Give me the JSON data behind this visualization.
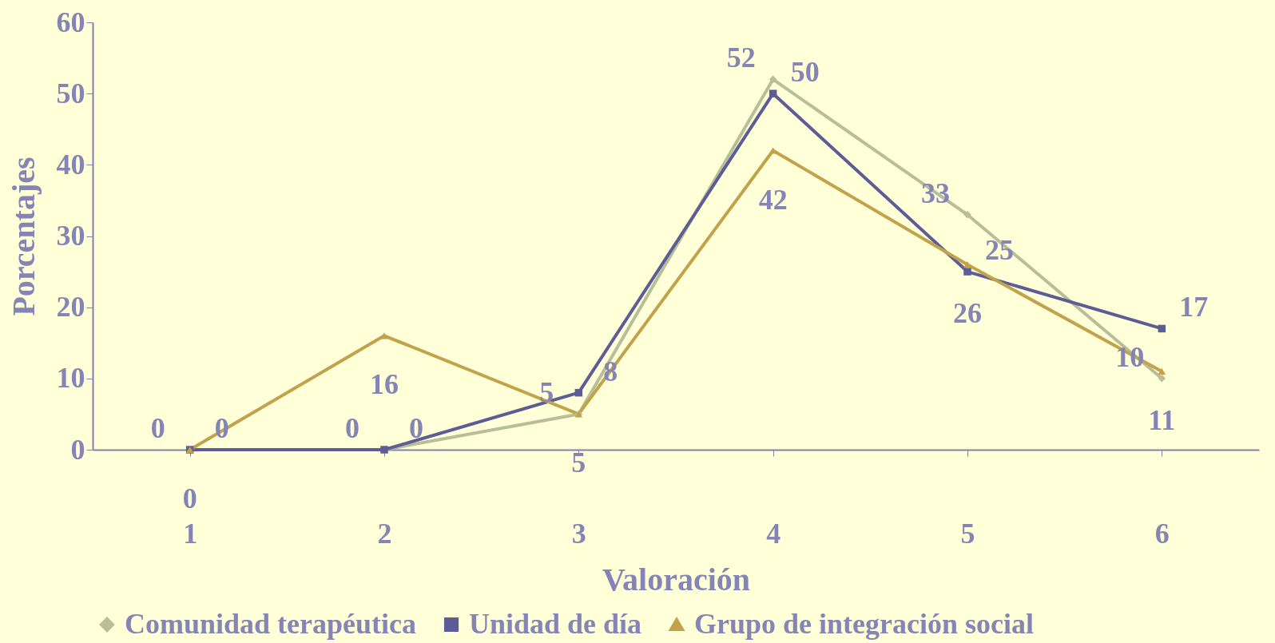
{
  "chart_data": {
    "type": "line",
    "xlabel": "Valoración",
    "ylabel": "Porcentajes",
    "categories": [
      "1",
      "2",
      "3",
      "4",
      "5",
      "6"
    ],
    "series": [
      {
        "name": "Comunidad terapéutica",
        "color": "#b8bf98",
        "marker": "diamond",
        "values": [
          0,
          0,
          5,
          52,
          33,
          10
        ]
      },
      {
        "name": "Unidad de día",
        "color": "#5c5c96",
        "marker": "square",
        "values": [
          0,
          0,
          8,
          50,
          25,
          17
        ]
      },
      {
        "name": "Grupo de integración social",
        "color": "#c3a24c",
        "marker": "triangle",
        "values": [
          0,
          16,
          5,
          42,
          26,
          11
        ]
      }
    ],
    "ylim": [
      0,
      60
    ],
    "yticks": [
      0,
      10,
      20,
      30,
      40,
      50,
      60
    ],
    "grid": false,
    "legend": "bottom",
    "data_labels": true,
    "line_style": "solid"
  }
}
